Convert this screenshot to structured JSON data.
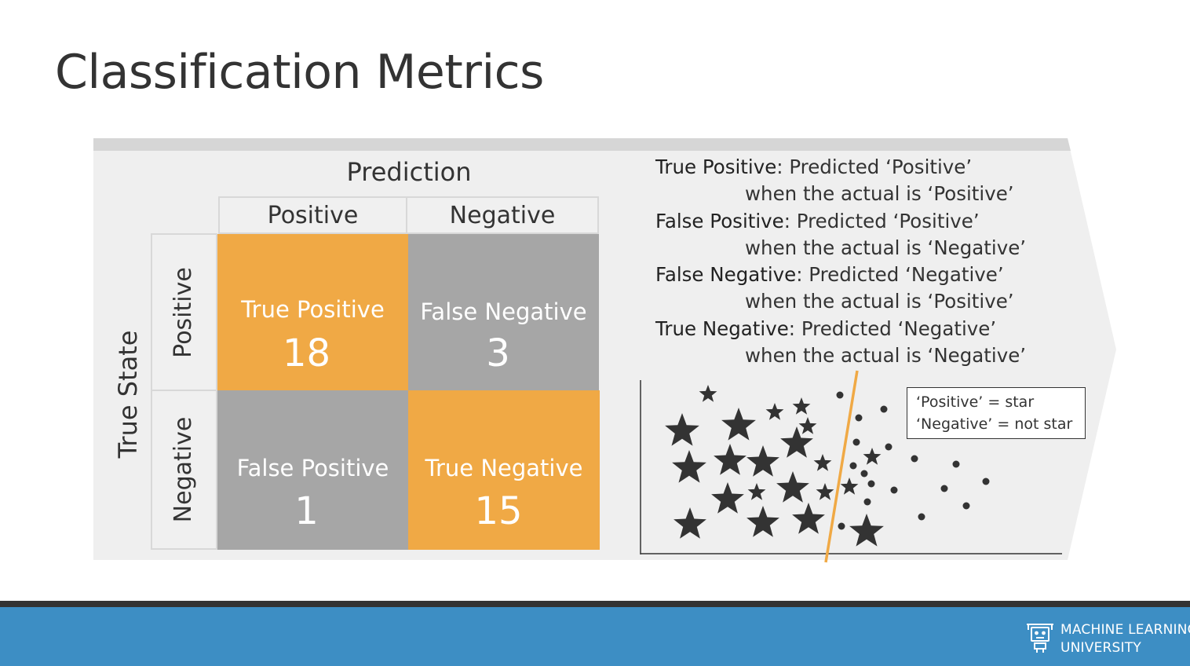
{
  "slide": {
    "title": "Classification Metrics"
  },
  "matrix": {
    "prediction_label": "Prediction",
    "true_state_label": "True State",
    "columns": [
      "Positive",
      "Negative"
    ],
    "rows": [
      "Positive",
      "Negative"
    ],
    "cells": [
      {
        "name": "True Positive",
        "value": "18",
        "color": "#f0a945"
      },
      {
        "name": "False Negative",
        "value": "3",
        "color": "#a6a6a6"
      },
      {
        "name": "False Positive",
        "value": "1",
        "color": "#a6a6a6"
      },
      {
        "name": "True Negative",
        "value": "15",
        "color": "#f0a945"
      }
    ]
  },
  "definitions": [
    {
      "term": "True Positive",
      "line1": ": Predicted ‘Positive’",
      "line2": "when the actual is ‘Positive’"
    },
    {
      "term": "False Positive",
      "line1": ": Predicted ‘Positive’",
      "line2": "when the actual is ‘Negative’"
    },
    {
      "term": "False Negative",
      "line1": ": Predicted ‘Negative’",
      "line2": "when the actual is ‘Positive’"
    },
    {
      "term": "True Negative",
      "line1": ": Predicted ‘Negative’",
      "line2": "when the actual is ‘Negative’"
    }
  ],
  "legend": {
    "line1": "‘Positive’ = star",
    "line2": "‘Negative’ = not star"
  },
  "footer": {
    "brand_line1": "MACHINE LEARNING",
    "brand_line2": "UNIVERSITY",
    "logo_icon": "robot-icon",
    "bar_color": "#3d8ec4"
  }
}
